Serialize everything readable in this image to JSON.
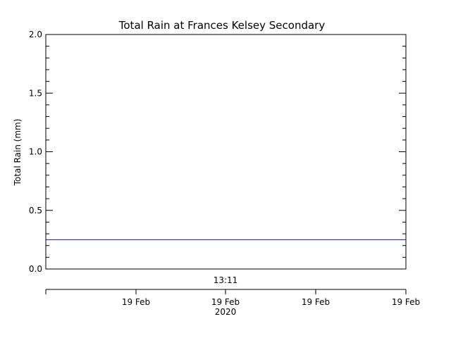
{
  "chart_data": {
    "type": "line",
    "title": "Total Rain at Frances Kelsey Secondary",
    "ylabel": "Total Rain (mm)",
    "xlabel": "2020",
    "ylim": [
      0,
      2.0
    ],
    "y_ticks": [
      "0.0",
      "0.5",
      "1.0",
      "1.5",
      "2.0"
    ],
    "y_tick_values": [
      0.0,
      0.5,
      1.0,
      1.5,
      2.0
    ],
    "x_time_label": "13:11",
    "x_tick_labels": [
      "19 Feb",
      "19 Feb",
      "19 Feb",
      "19 Feb"
    ],
    "series": [
      {
        "color": "#1a1a8c",
        "x": [
          "start",
          "end"
        ],
        "values": [
          0.25,
          0.25
        ]
      }
    ],
    "grid": false
  },
  "colors": {
    "axis": "#000000",
    "series": "#1a1a8c"
  }
}
